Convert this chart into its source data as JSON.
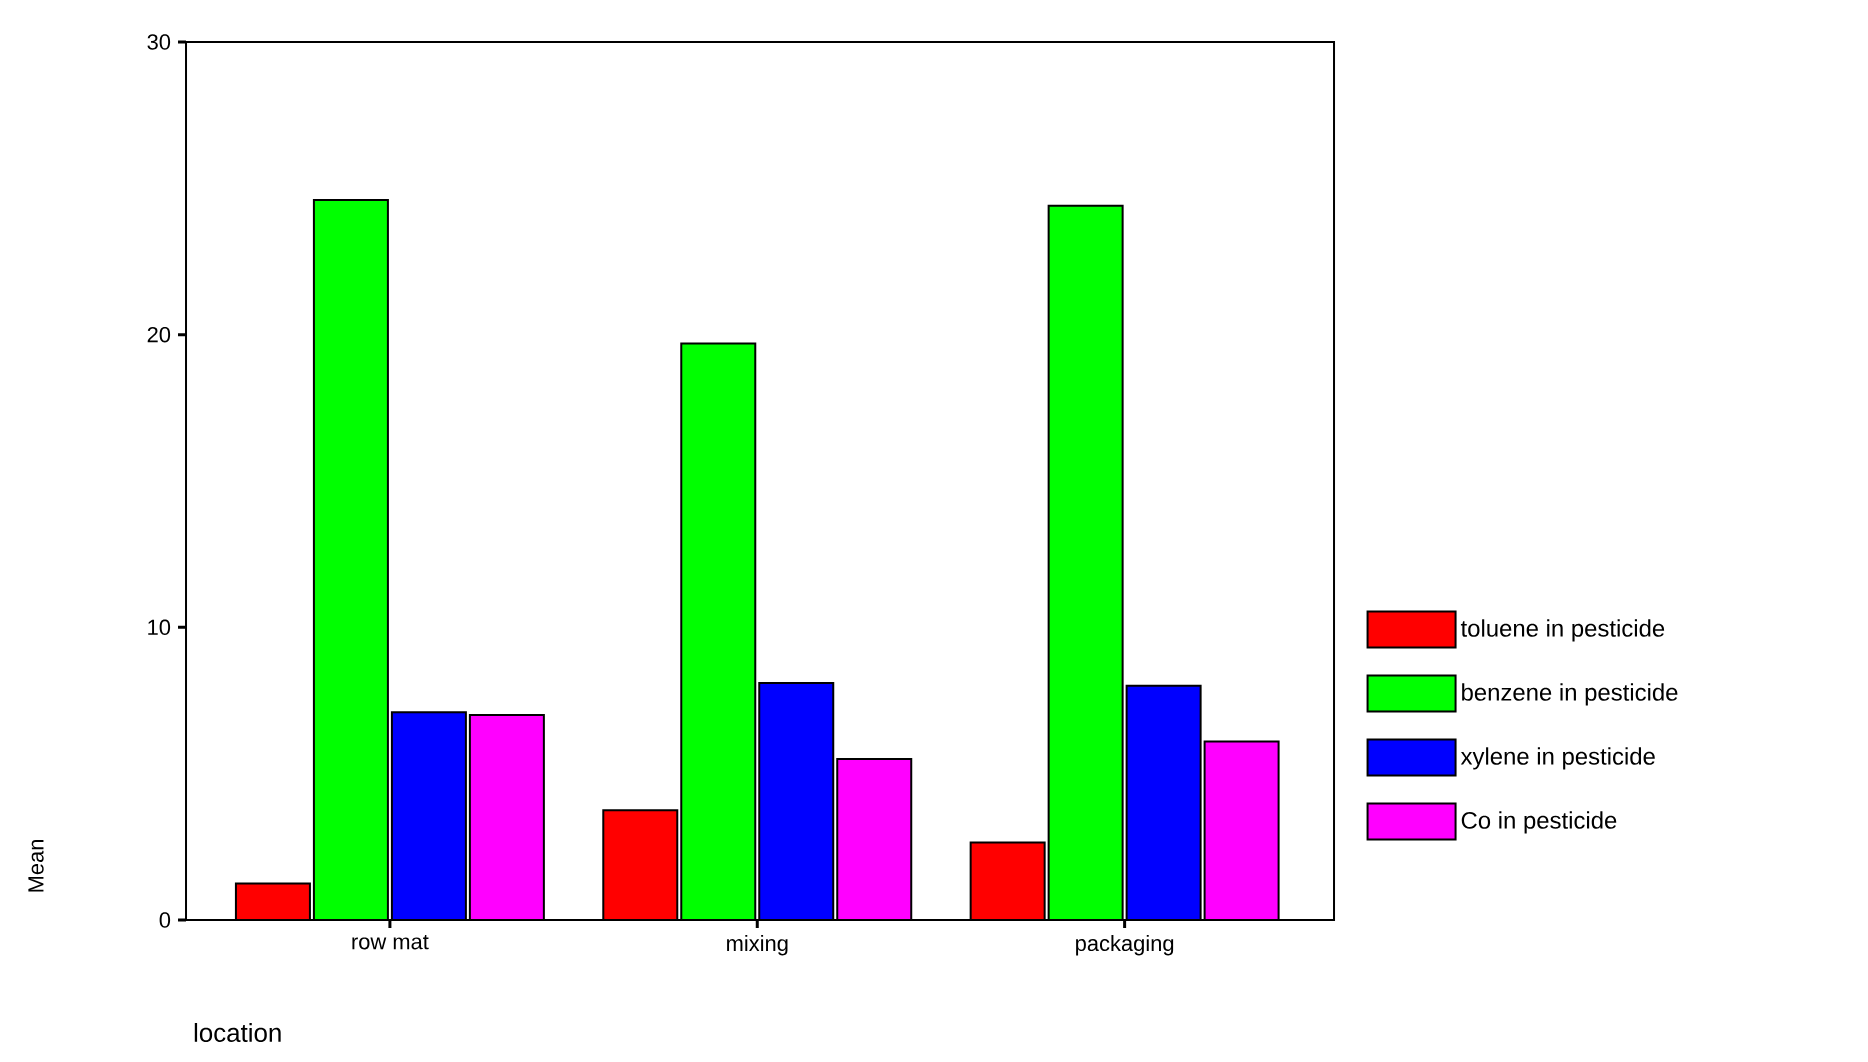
{
  "chart_data": {
    "type": "bar",
    "xlabel": "location",
    "ylabel": "Mean",
    "categories": [
      "row mat",
      "mixing",
      "packaging"
    ],
    "series": [
      {
        "name": "toluene in pesticide",
        "color": "#ff0000",
        "values": [
          1.25,
          3.75,
          2.65
        ]
      },
      {
        "name": "benzene in pesticide",
        "color": "#00ff00",
        "values": [
          24.6,
          19.7,
          24.4
        ]
      },
      {
        "name": "xylene in pesticide",
        "color": "#0000ff",
        "values": [
          7.1,
          8.1,
          8.0
        ]
      },
      {
        "name": "Co in pesticide",
        "color": "#ff00ff",
        "values": [
          7.0,
          5.5,
          6.1
        ]
      }
    ],
    "ylim": [
      0,
      30
    ],
    "yticks": [
      0,
      10,
      20,
      30
    ],
    "grid": false,
    "legend": "right"
  }
}
